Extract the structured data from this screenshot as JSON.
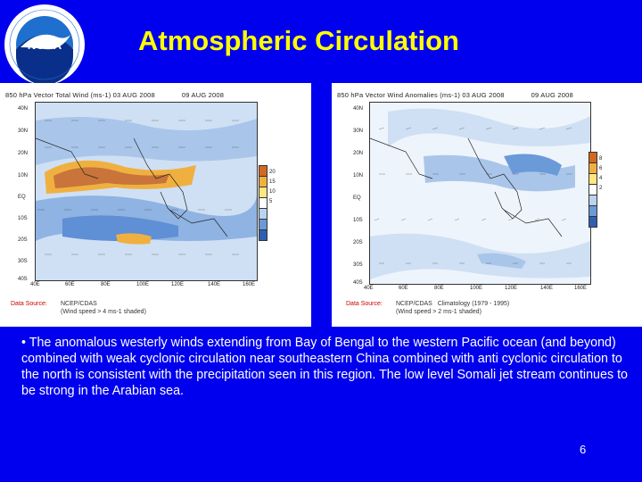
{
  "slide": {
    "title": "Atmospheric Circulation",
    "body": "• The anomalous westerly winds extending from Bay of Bengal to the western Pacific ocean (and beyond) combined with weak cyclonic circulation near southeastern China combined with anti cyclonic circulation to the north is consistent with the precipitation seen in this region. The low level Somali jet stream continues to be strong in the Arabian sea.",
    "page_number": "6"
  },
  "logo": {
    "text": "NOAA",
    "ring_text": "NATIONAL OCEANIC AND ATMOSPHERIC ADMINISTRATION · U.S. DEPARTMENT OF COMMERCE",
    "colors": {
      "ring": "#ffffff",
      "sky": "#1f6fcf",
      "sea": "#0a2f8a",
      "bird": "#ffffff"
    }
  },
  "maps": {
    "left": {
      "header_left": "850 hPa Vector Total Wind (ms-1) 03 AUG 2008",
      "header_right": "09 AUG 2008",
      "lat_labels": [
        "40N",
        "30N",
        "20N",
        "10N",
        "EQ",
        "10S",
        "20S",
        "30S",
        "40S"
      ],
      "lon_labels": [
        "40E",
        "60E",
        "80E",
        "100E",
        "120E",
        "140E",
        "160E"
      ],
      "colorbar_labels": [
        "20",
        "15",
        "10",
        "5"
      ],
      "colorbar_colors": [
        "#d2691e",
        "#f0b040",
        "#ffe680",
        "#ffffff",
        "#b8d4f0",
        "#6a9ad8",
        "#2f5fb0"
      ],
      "data_source_label": "Data Source:",
      "data_source": "NCEP/CDAS",
      "footnote": "(Wind speed > 4 ms-1 shaded)"
    },
    "right": {
      "header_left": "850 hPa Vector Wind Anomalies (ms-1) 03 AUG 2008",
      "header_right": "09 AUG 2008",
      "lat_labels": [
        "40N",
        "30N",
        "20N",
        "10N",
        "EQ",
        "10S",
        "20S",
        "30S",
        "40S"
      ],
      "lon_labels": [
        "40E",
        "60E",
        "80E",
        "100E",
        "120E",
        "140E",
        "160E"
      ],
      "colorbar_labels": [
        "8",
        "6",
        "4",
        "2"
      ],
      "colorbar_colors": [
        "#d2691e",
        "#f0b040",
        "#ffe680",
        "#ffffff",
        "#b8d4f0",
        "#6a9ad8",
        "#2f5fb0"
      ],
      "data_source_label": "Data Source:",
      "data_source": "NCEP/CDAS",
      "climatology": "Climatology (1979 - 1995)",
      "footnote": "(Wind speed > 2 ms-1 shaded)"
    }
  },
  "colors": {
    "background": "#0000ee",
    "title": "#ffff00",
    "body_text": "#ffffff"
  }
}
